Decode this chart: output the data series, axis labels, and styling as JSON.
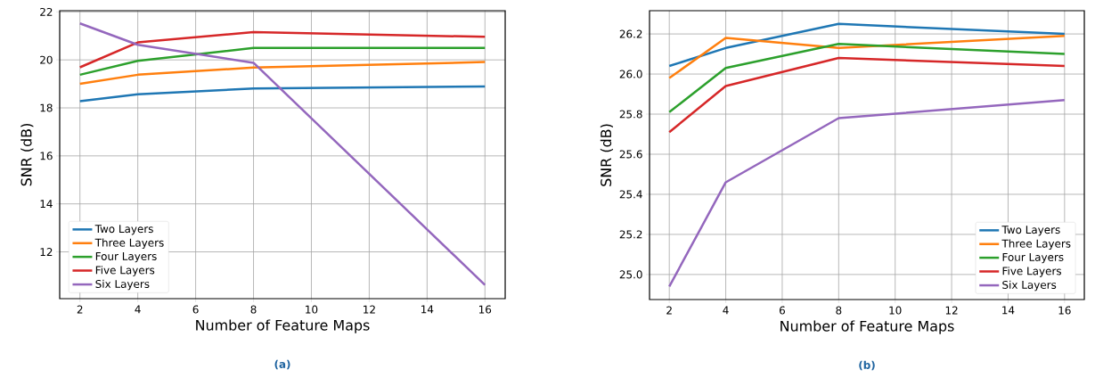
{
  "chart_data": [
    {
      "type": "line",
      "xlabel": "Number of Feature Maps",
      "ylabel": "SNR (dB)",
      "annotations": [
        "(a)"
      ],
      "x": [
        2,
        4,
        8,
        16
      ],
      "xlim": [
        1.3,
        16.7
      ],
      "ylim": [
        10.05,
        22.05
      ],
      "xticks": [
        2,
        4,
        6,
        8,
        10,
        12,
        14,
        16
      ],
      "yticks": [
        12,
        14,
        16,
        18,
        20,
        22
      ],
      "grid": true,
      "legend": "bottom left",
      "series": [
        {
          "name": "Two Layers",
          "color": "#1f77b4",
          "values": [
            18.28,
            18.57,
            18.81,
            18.89
          ]
        },
        {
          "name": "Three Layers",
          "color": "#ff7f0e",
          "values": [
            19.0,
            19.38,
            19.68,
            19.91
          ]
        },
        {
          "name": "Four Layers",
          "color": "#2ca02c",
          "values": [
            19.38,
            19.96,
            20.5,
            20.5
          ]
        },
        {
          "name": "Five Layers",
          "color": "#d62728",
          "values": [
            19.69,
            20.73,
            21.16,
            20.96
          ]
        },
        {
          "name": "Six Layers",
          "color": "#9467bd",
          "values": [
            21.52,
            20.63,
            19.88,
            10.62
          ]
        }
      ]
    },
    {
      "type": "line",
      "xlabel": "Number of Feature Maps",
      "ylabel": "SNR (dB)",
      "annotations": [
        "(b)"
      ],
      "x": [
        2,
        4,
        8,
        16
      ],
      "xlim": [
        1.3,
        16.7
      ],
      "ylim": [
        24.875,
        26.316
      ],
      "xticks": [
        2,
        4,
        6,
        8,
        10,
        12,
        14,
        16
      ],
      "yticks": [
        {
          "value": 25,
          "label": "25.0"
        },
        25.2,
        25.4,
        25.6,
        25.8,
        {
          "value": 26,
          "label": "26.0"
        },
        26.2
      ],
      "grid": true,
      "legend": "bottom right",
      "series": [
        {
          "name": "Two Layers",
          "color": "#1f77b4",
          "values": [
            26.04,
            26.13,
            26.25,
            26.2
          ]
        },
        {
          "name": "Three Layers",
          "color": "#ff7f0e",
          "values": [
            25.98,
            26.18,
            26.13,
            26.19
          ]
        },
        {
          "name": "Four Layers",
          "color": "#2ca02c",
          "values": [
            25.81,
            26.03,
            26.15,
            26.1
          ]
        },
        {
          "name": "Five Layers",
          "color": "#d62728",
          "values": [
            25.71,
            25.94,
            26.08,
            26.04
          ]
        },
        {
          "name": "Six Layers",
          "color": "#9467bd",
          "values": [
            24.94,
            25.46,
            25.78,
            25.87
          ]
        }
      ]
    }
  ]
}
